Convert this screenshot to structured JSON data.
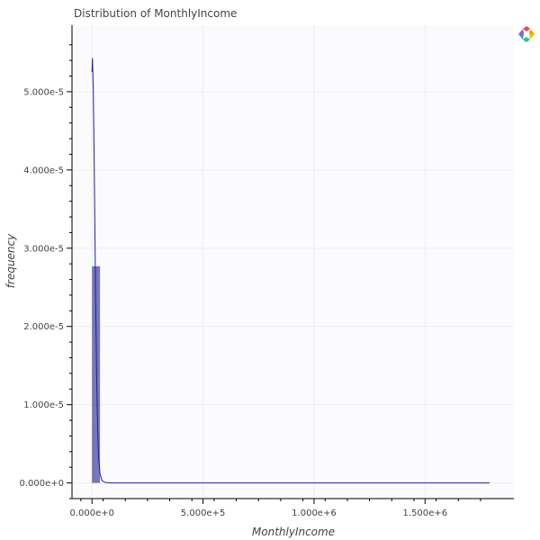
{
  "chart_data": {
    "type": "bar",
    "title": "Distribution of MonthlyIncome",
    "xlabel": "MonthlyIncome",
    "ylabel": "frequency",
    "xlim": [
      -90000,
      1900000
    ],
    "ylim": [
      -2e-06,
      5.85e-05
    ],
    "x_ticks": [
      0,
      500000,
      1000000,
      1500000
    ],
    "x_tick_labels": [
      "0.000e+0",
      "5.000e+5",
      "1.000e+6",
      "1.500e+6"
    ],
    "y_ticks": [
      0,
      1e-05,
      2e-05,
      3e-05,
      4e-05,
      5e-05
    ],
    "y_tick_labels": [
      "0.000e+0",
      "1.000e-5",
      "2.000e-5",
      "3.000e-5",
      "4.000e-5",
      "5.000e-5"
    ],
    "histogram": {
      "bins": [
        {
          "left": 0,
          "right": 36000,
          "value": 2.77e-05
        }
      ],
      "color": "#5c5fae"
    },
    "density_curve": {
      "color": "#1f1f9e",
      "points": [
        [
          0,
          5.25e-05
        ],
        [
          2000,
          5.43e-05
        ],
        [
          6000,
          5e-05
        ],
        [
          10000,
          4.1e-05
        ],
        [
          14000,
          3e-05
        ],
        [
          18000,
          2e-05
        ],
        [
          22000,
          1.2e-05
        ],
        [
          26000,
          6.5e-06
        ],
        [
          30000,
          3.2e-06
        ],
        [
          36000,
          1.2e-06
        ],
        [
          45000,
          3e-07
        ],
        [
          60000,
          5e-08
        ],
        [
          90000,
          0
        ],
        [
          1790000,
          0
        ]
      ]
    },
    "grid": true,
    "legend": "none"
  },
  "ui": {
    "logo_icon": "bokeh-logo-icon"
  }
}
